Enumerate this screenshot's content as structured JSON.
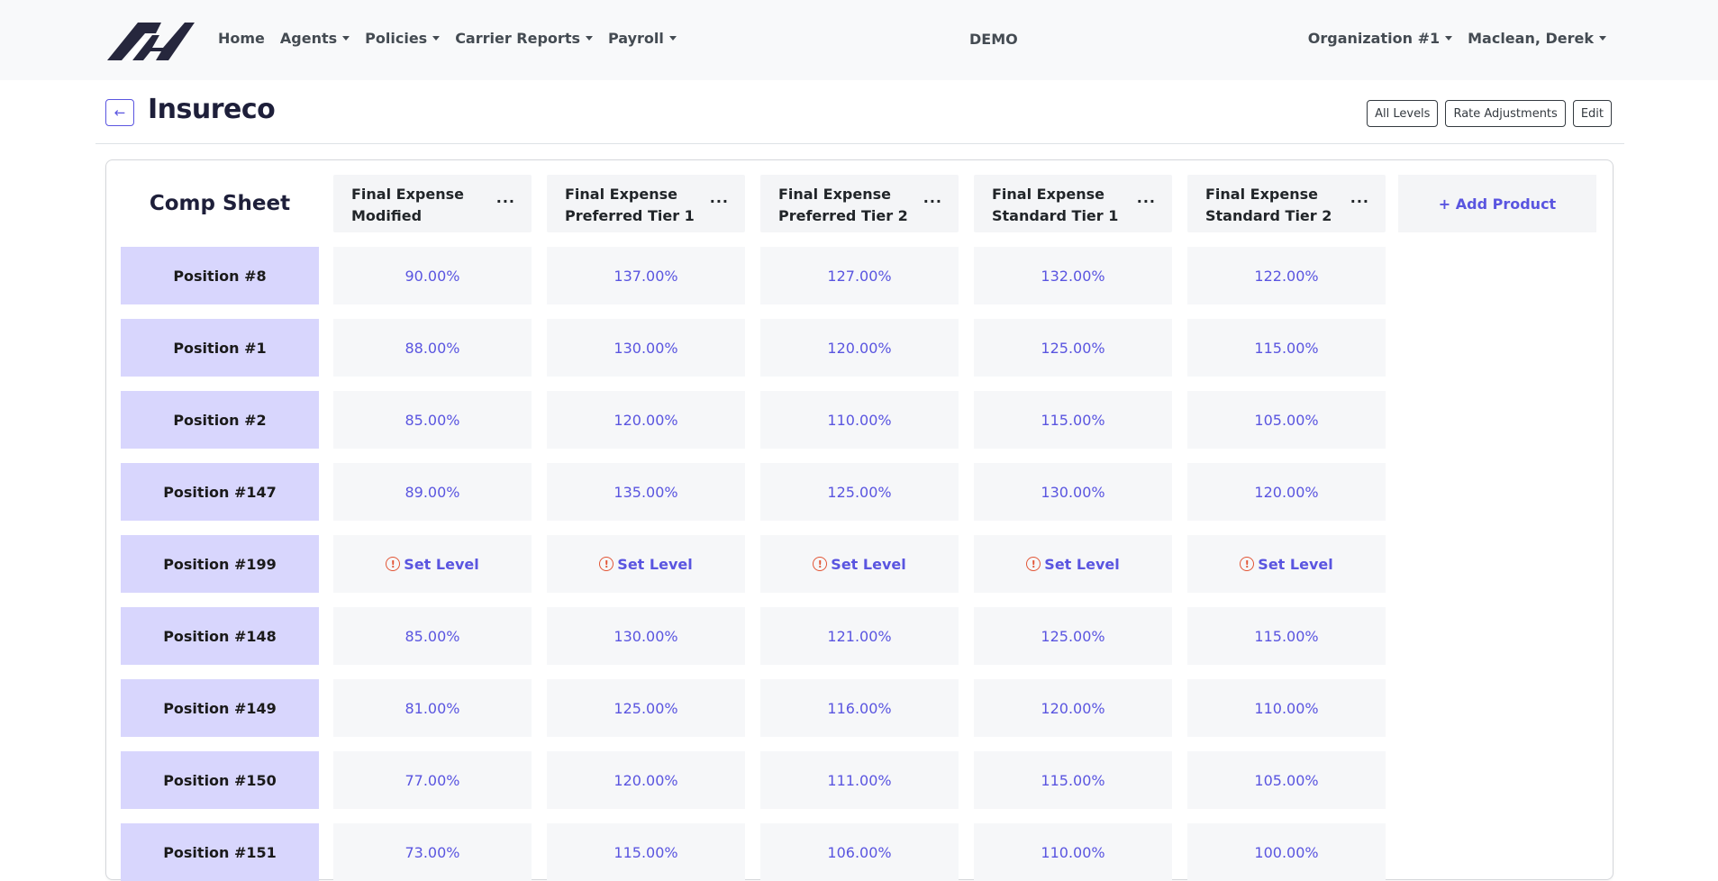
{
  "nav": {
    "home": "Home",
    "agents": "Agents",
    "policies": "Policies",
    "carrier_reports": "Carrier Reports",
    "payroll": "Payroll",
    "env_label": "DEMO",
    "organization": "Organization #1",
    "user": "Maclean, Derek"
  },
  "header": {
    "back_arrow": "←",
    "title": "Insureco",
    "all_levels": "All Levels",
    "rate_adjustments": "Rate Adjustments",
    "edit": "Edit"
  },
  "sheet": {
    "title": "Comp Sheet",
    "menu_dots": "···",
    "add_product": "+ Add Product",
    "set_level": "Set Level",
    "warn_glyph": "!",
    "columns": [
      "Final Expense Modified",
      "Final Expense Preferred Tier 1",
      "Final Expense Preferred Tier 2",
      "Final Expense Standard Tier 1",
      "Final Expense Standard Tier 2"
    ],
    "rows": [
      {
        "label": "Position #8",
        "values": [
          "90.00%",
          "137.00%",
          "127.00%",
          "132.00%",
          "122.00%"
        ]
      },
      {
        "label": "Position #1",
        "values": [
          "88.00%",
          "130.00%",
          "120.00%",
          "125.00%",
          "115.00%"
        ]
      },
      {
        "label": "Position #2",
        "values": [
          "85.00%",
          "120.00%",
          "110.00%",
          "115.00%",
          "105.00%"
        ]
      },
      {
        "label": "Position #147",
        "values": [
          "89.00%",
          "135.00%",
          "125.00%",
          "130.00%",
          "120.00%"
        ]
      },
      {
        "label": "Position #199",
        "values": [
          "",
          "",
          "",
          "",
          ""
        ],
        "unset": true
      },
      {
        "label": "Position #148",
        "values": [
          "85.00%",
          "130.00%",
          "121.00%",
          "125.00%",
          "115.00%"
        ]
      },
      {
        "label": "Position #149",
        "values": [
          "81.00%",
          "125.00%",
          "116.00%",
          "120.00%",
          "110.00%"
        ]
      },
      {
        "label": "Position #150",
        "values": [
          "77.00%",
          "120.00%",
          "111.00%",
          "115.00%",
          "105.00%"
        ]
      },
      {
        "label": "Position #151",
        "values": [
          "73.00%",
          "115.00%",
          "106.00%",
          "110.00%",
          "100.00%"
        ]
      }
    ]
  }
}
